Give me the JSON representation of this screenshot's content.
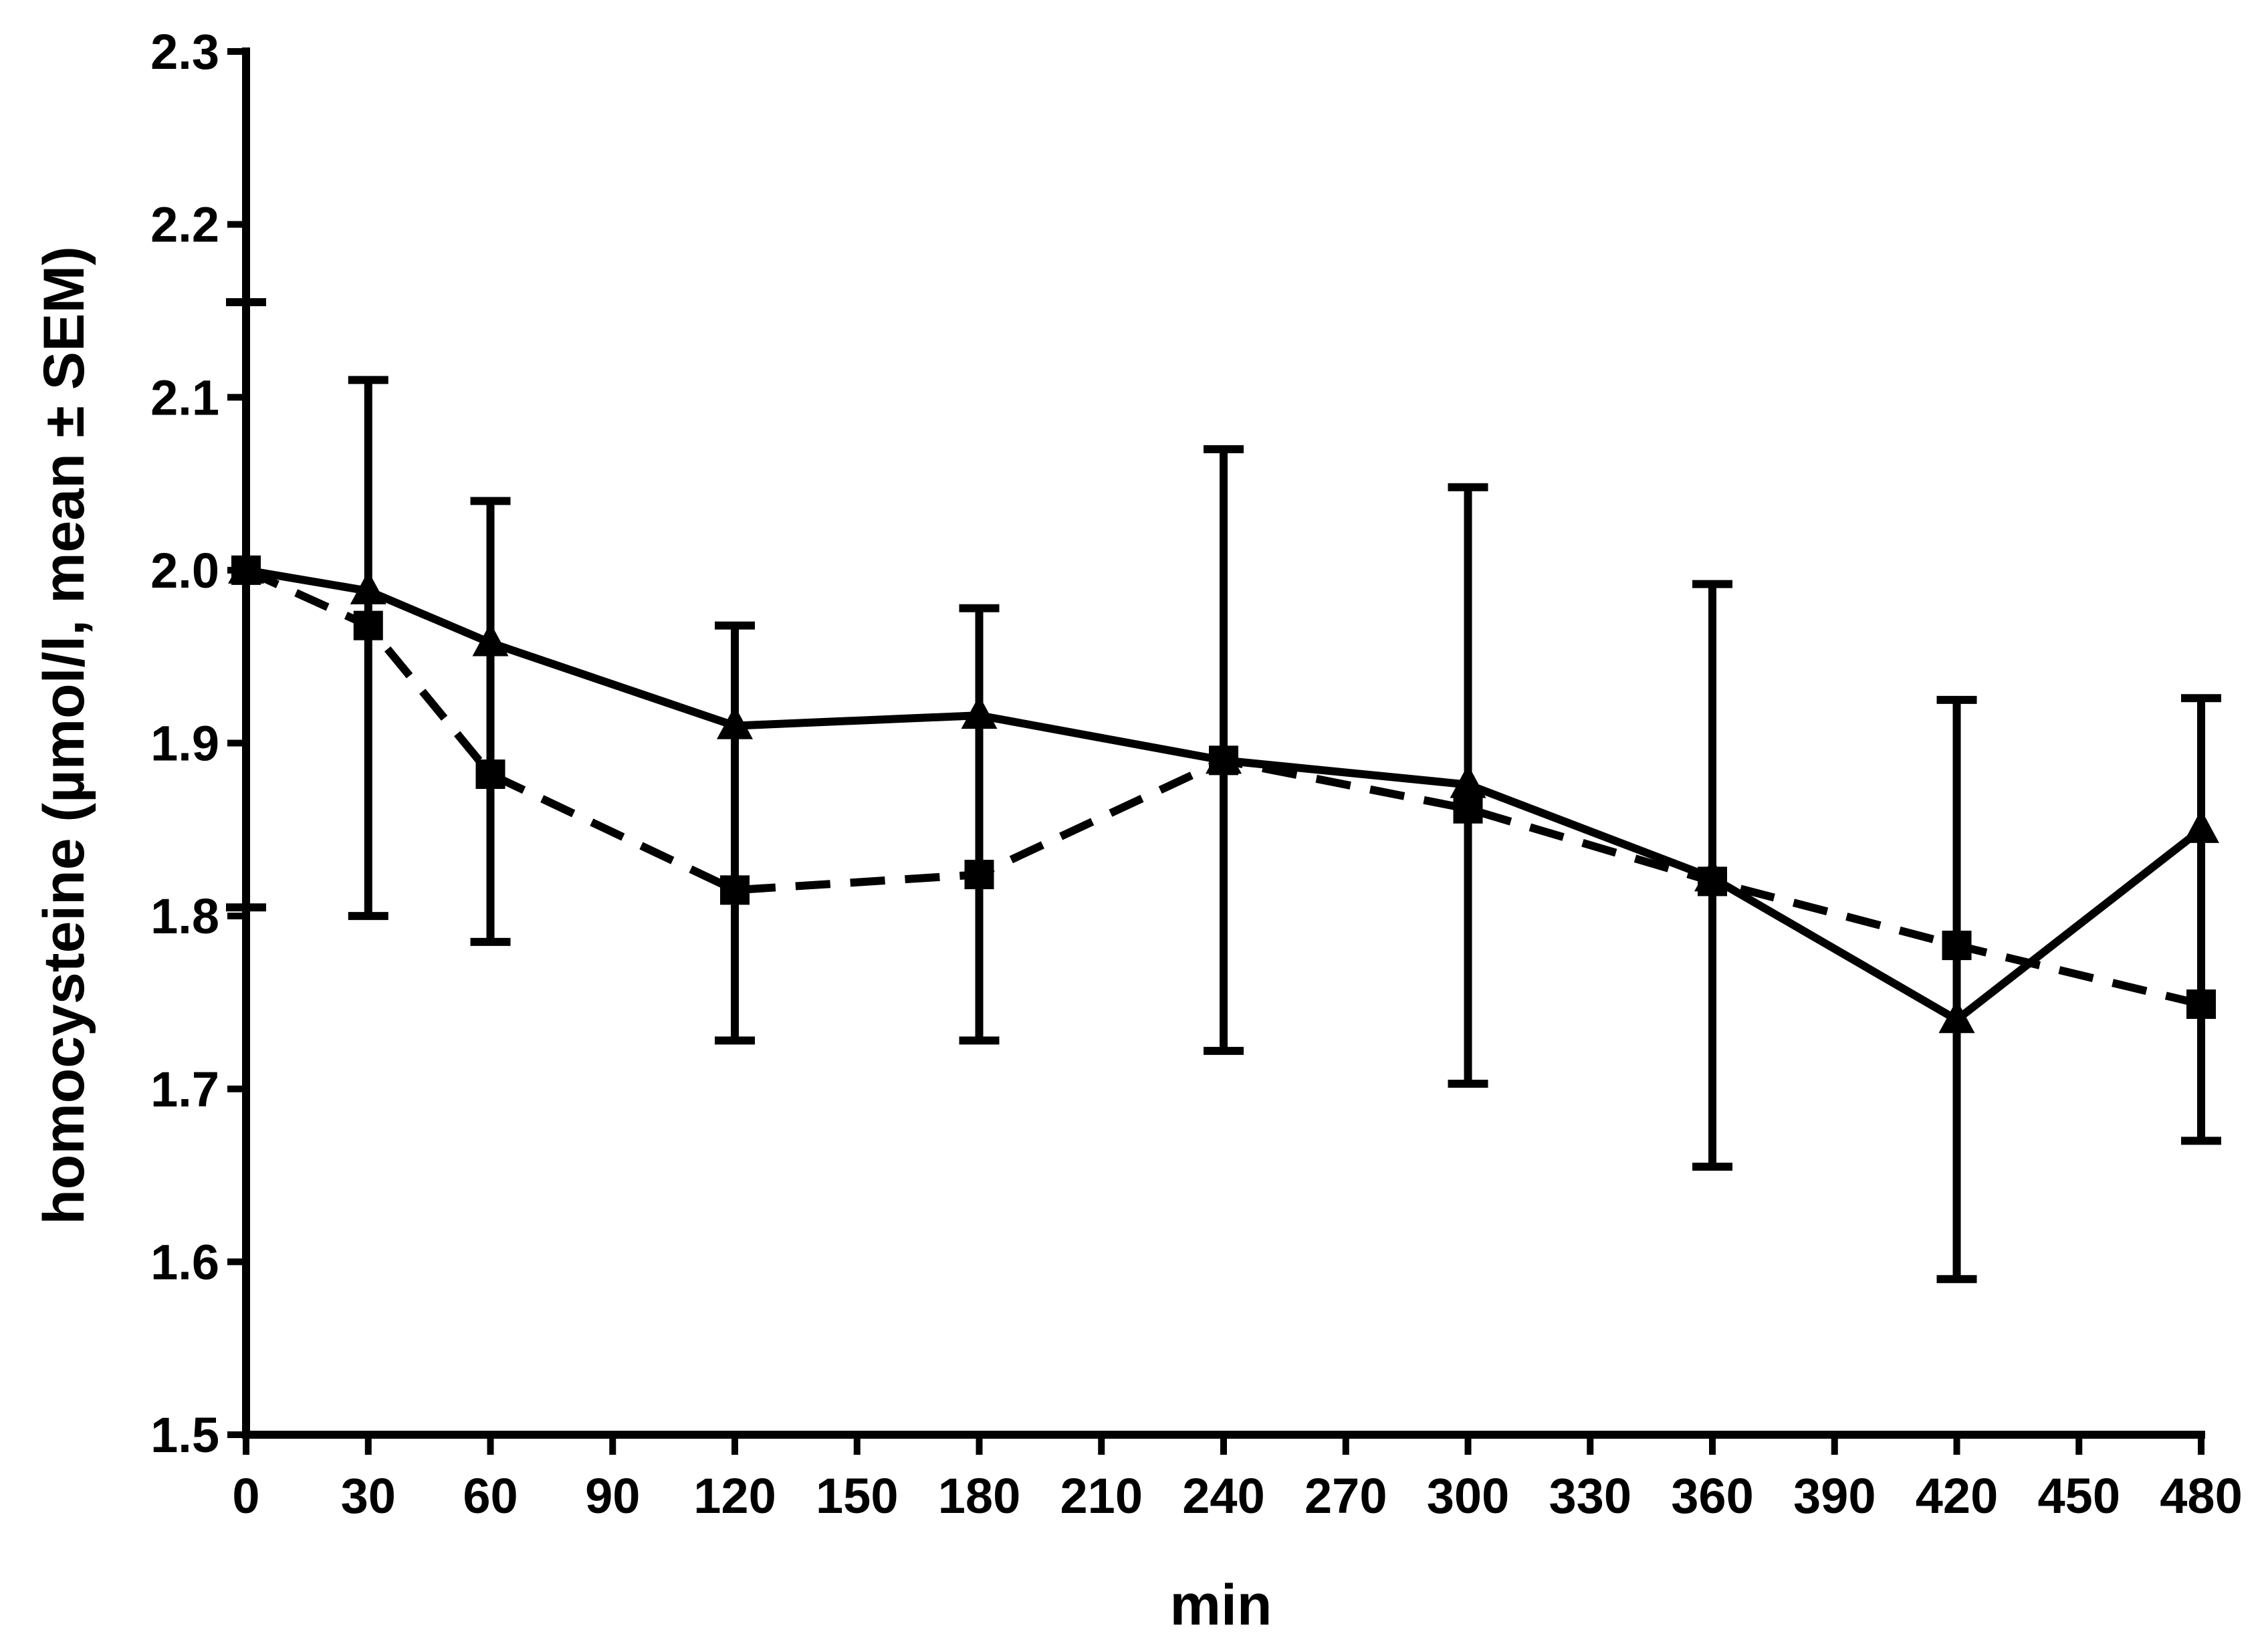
{
  "chart_data": {
    "type": "line",
    "title": "",
    "xlabel": "min",
    "ylabel": "homocysteine (µmol/l, mean ± SEM)",
    "xlim": [
      0,
      480
    ],
    "ylim": [
      1.5,
      2.3
    ],
    "x_ticks": [
      0,
      30,
      60,
      90,
      120,
      150,
      180,
      210,
      240,
      270,
      300,
      330,
      360,
      390,
      420,
      450,
      480
    ],
    "x_tick_labels": [
      "0",
      "30",
      "60",
      "90",
      "120",
      "150",
      "180",
      "210",
      "240",
      "270",
      "300",
      "330",
      "360",
      "390",
      "420",
      "450",
      "480"
    ],
    "y_ticks": [
      1.5,
      1.6,
      1.7,
      1.8,
      1.9,
      2.0,
      2.1,
      2.2,
      2.3
    ],
    "y_tick_labels": [
      "1.5",
      "1.6",
      "1.7",
      "1.8",
      "1.9",
      "2.0",
      "2.1",
      "2.2",
      "2.3"
    ],
    "grid": false,
    "legend": "none",
    "series": [
      {
        "marker": "triangle",
        "line_style": "solid",
        "color": "#000000",
        "x": [
          0,
          30,
          60,
          120,
          180,
          240,
          300,
          360,
          420,
          480
        ],
        "y": [
          2.0,
          1.988,
          1.958,
          1.91,
          1.916,
          1.89,
          1.876,
          1.822,
          1.74,
          1.85
        ]
      },
      {
        "marker": "square",
        "line_style": "dashed",
        "color": "#000000",
        "x": [
          0,
          30,
          60,
          120,
          180,
          240,
          300,
          360,
          420,
          480
        ],
        "y": [
          2.0,
          1.968,
          1.882,
          1.815,
          1.824,
          1.89,
          1.862,
          1.82,
          1.783,
          1.749
        ]
      }
    ],
    "error_bars": [
      {
        "x": 0,
        "low": 1.805,
        "high": 2.155
      },
      {
        "x": 30,
        "low": 1.8,
        "high": 2.11
      },
      {
        "x": 60,
        "low": 1.785,
        "high": 2.04
      },
      {
        "x": 120,
        "low": 1.728,
        "high": 1.968
      },
      {
        "x": 180,
        "low": 1.728,
        "high": 1.978
      },
      {
        "x": 240,
        "low": 1.722,
        "high": 2.07
      },
      {
        "x": 300,
        "low": 1.703,
        "high": 2.048
      },
      {
        "x": 360,
        "low": 1.655,
        "high": 1.992
      },
      {
        "x": 420,
        "low": 1.59,
        "high": 1.925
      },
      {
        "x": 480,
        "low": 1.67,
        "high": 1.926
      }
    ]
  }
}
